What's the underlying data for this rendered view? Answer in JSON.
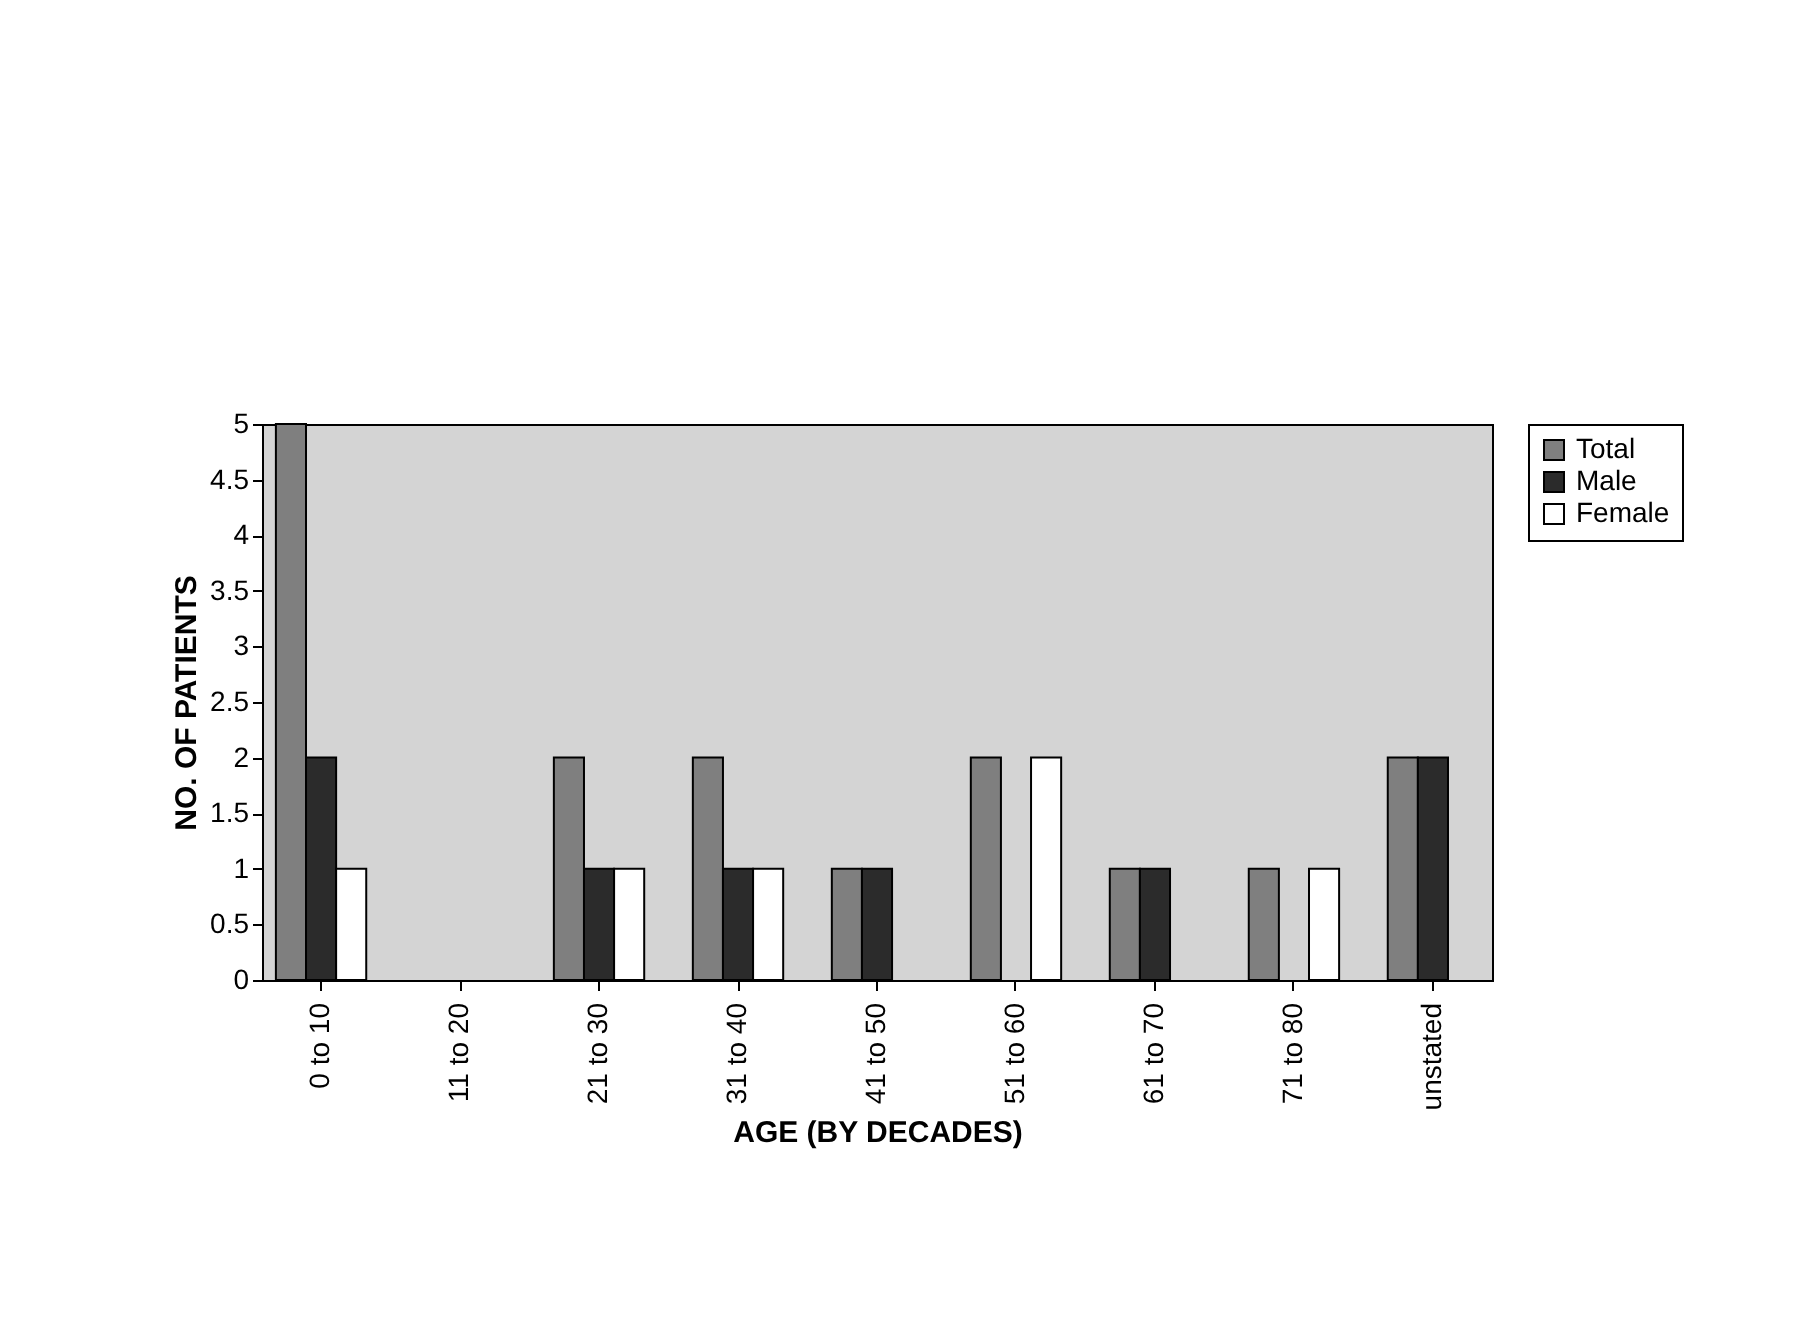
{
  "chart_data": {
    "type": "bar",
    "xlabel": "AGE (BY DECADES)",
    "ylabel": "NO. OF PATIENTS",
    "categories": [
      "0 to 10",
      "11 to 20",
      "21 to 30",
      "31 to 40",
      "41 to 50",
      "51 to 60",
      "61 to 70",
      "71 to 80",
      "unstated"
    ],
    "series": [
      {
        "name": "Total",
        "color": "#7f7f7f",
        "values": [
          5,
          null,
          2,
          2,
          1,
          2,
          1,
          1,
          2
        ]
      },
      {
        "name": "Male",
        "color": "#2b2b2b",
        "values": [
          2,
          null,
          1,
          1,
          1,
          null,
          1,
          null,
          2
        ]
      },
      {
        "name": "Female",
        "color": "#ffffff",
        "values": [
          1,
          null,
          1,
          1,
          null,
          2,
          null,
          1,
          null
        ]
      }
    ],
    "ylim": [
      0,
      5
    ],
    "yticks": [
      0,
      0.5,
      1,
      1.5,
      2,
      2.5,
      3,
      3.5,
      4,
      4.5,
      5
    ],
    "grid": false,
    "legend": "right"
  }
}
